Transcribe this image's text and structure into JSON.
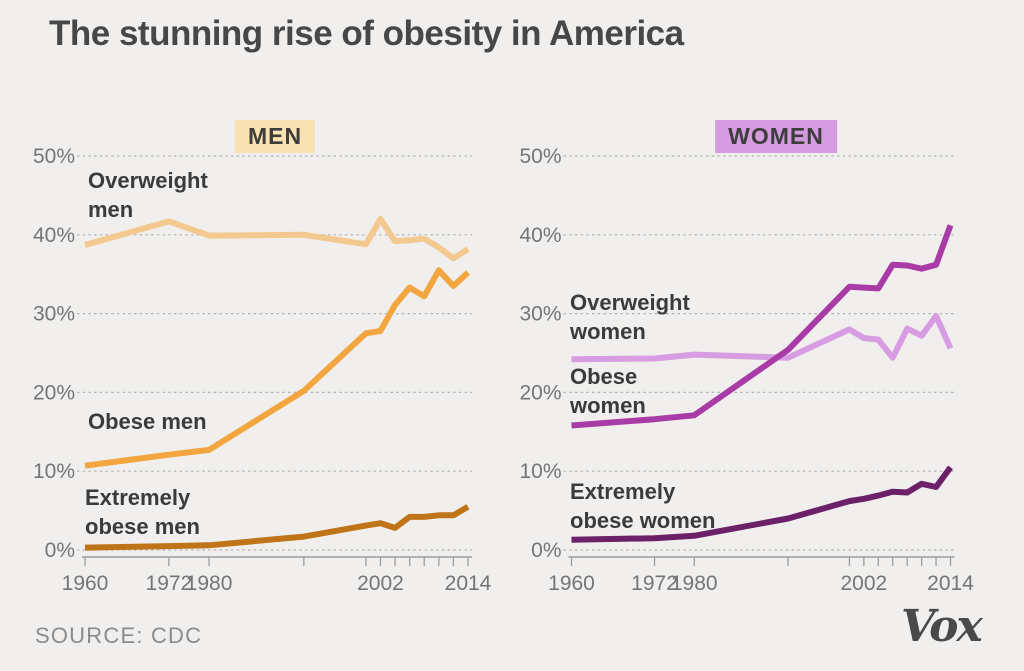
{
  "page": {
    "title": "The stunning rise of obesity in America",
    "source": "SOURCE: CDC",
    "logo_text": "Vox",
    "background_color": "#f0efed",
    "grid_color": "#b2b2b2",
    "axis_color": "#9c9c9c",
    "axis_text_color": "#757575"
  },
  "chart_data": [
    {
      "type": "line",
      "title": "The stunning rise of obesity in America",
      "panel": "MEN",
      "panel_badge_color": "#fbe2b2",
      "xlabel": "",
      "ylabel": "",
      "ylim": [
        0,
        50
      ],
      "grid": "dashed-horizontal",
      "legend_position": "inline-annotations",
      "y_ticks": [
        "0%",
        "10%",
        "20%",
        "30%",
        "40%",
        "50%"
      ],
      "x_years": [
        1961,
        1972.5,
        1978,
        1991,
        1999.5,
        2001.5,
        2003.5,
        2005.5,
        2007.5,
        2009.5,
        2011.5,
        2013.5
      ],
      "x_tick_labels": [
        {
          "tick": 0,
          "label": "1960"
        },
        {
          "tick": 1,
          "label": "1972"
        },
        {
          "tick": 2,
          "label": "1980"
        },
        {
          "tick": 5,
          "label": "2002"
        },
        {
          "tick": 11,
          "label": "2014"
        }
      ],
      "series": [
        {
          "name": "Overweight men",
          "label_lines": [
            "Overweight",
            "men"
          ],
          "color": "#f3c98f",
          "values": [
            38.7,
            41.7,
            39.9,
            40.0,
            38.8,
            42.0,
            39.2,
            39.3,
            39.5,
            38.4,
            37.0,
            38.2
          ]
        },
        {
          "name": "Obese men",
          "label_lines": [
            "Obese men"
          ],
          "color": "#f3a63f",
          "values": [
            10.7,
            12.1,
            12.7,
            20.2,
            27.5,
            27.8,
            31.1,
            33.3,
            32.2,
            35.5,
            33.5,
            35.2
          ]
        },
        {
          "name": "Extremely obese men",
          "label_lines": [
            "Extremely",
            "obese men"
          ],
          "color": "#c07418",
          "values": [
            0.3,
            0.5,
            0.6,
            1.7,
            3.1,
            3.4,
            2.8,
            4.2,
            4.2,
            4.4,
            4.4,
            5.5
          ]
        }
      ]
    },
    {
      "type": "line",
      "title": "The stunning rise of obesity in America",
      "panel": "WOMEN",
      "panel_badge_color": "#d59be0",
      "xlabel": "",
      "ylabel": "",
      "ylim": [
        0,
        50
      ],
      "grid": "dashed-horizontal",
      "legend_position": "inline-annotations",
      "y_ticks": [
        "0%",
        "10%",
        "20%",
        "30%",
        "40%",
        "50%"
      ],
      "x_years": [
        1961,
        1972.5,
        1978,
        1991,
        1999.5,
        2001.5,
        2003.5,
        2005.5,
        2007.5,
        2009.5,
        2011.5,
        2013.5
      ],
      "x_tick_labels": [
        {
          "tick": 0,
          "label": "1960"
        },
        {
          "tick": 1,
          "label": "1972"
        },
        {
          "tick": 2,
          "label": "1980"
        },
        {
          "tick": 5,
          "label": "2002"
        },
        {
          "tick": 11,
          "label": "2014"
        }
      ],
      "series": [
        {
          "name": "Overweight women",
          "label_lines": [
            "Overweight",
            "women"
          ],
          "color": "#d79ce1",
          "values": [
            24.2,
            24.3,
            24.8,
            24.4,
            28.0,
            26.9,
            26.7,
            24.4,
            28.1,
            27.2,
            29.7,
            25.6
          ]
        },
        {
          "name": "Obese women",
          "label_lines": [
            "Obese",
            "women"
          ],
          "color": "#a93ba6",
          "values": [
            15.8,
            16.6,
            17.1,
            25.4,
            33.4,
            33.3,
            33.2,
            36.2,
            36.1,
            35.7,
            36.2,
            41.2
          ]
        },
        {
          "name": "Extremely obese women",
          "label_lines": [
            "Extremely",
            "obese women"
          ],
          "color": "#6b2067",
          "values": [
            1.3,
            1.5,
            1.8,
            4.0,
            6.2,
            6.5,
            6.9,
            7.4,
            7.3,
            8.4,
            8.0,
            10.5
          ]
        }
      ]
    }
  ]
}
